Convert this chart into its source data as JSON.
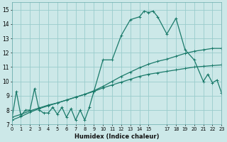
{
  "xlabel": "Humidex (Indice chaleur)",
  "bg_color": "#cce8e8",
  "grid_color": "#99cccc",
  "line_color": "#1a7a6a",
  "xlim": [
    0,
    23
  ],
  "ylim": [
    7,
    15.5
  ],
  "yticks": [
    7,
    8,
    9,
    10,
    11,
    12,
    13,
    14,
    15
  ],
  "xtick_positions": [
    0,
    1,
    2,
    3,
    4,
    5,
    6,
    7,
    8,
    9,
    10,
    11,
    12,
    13,
    14,
    15,
    17,
    18,
    19,
    20,
    21,
    22,
    23
  ],
  "xtick_labels": [
    "0",
    "1",
    "2",
    "3",
    "4",
    "5",
    "6",
    "7",
    "8",
    "9",
    "10",
    "11",
    "12",
    "13",
    "14",
    "15",
    "17",
    "18",
    "19",
    "20",
    "21",
    "22",
    "23"
  ],
  "line1_x": [
    0,
    0.5,
    1,
    1.5,
    2,
    2.5,
    3,
    3.5,
    4,
    4.5,
    5,
    5.5,
    6,
    6.5,
    7,
    7.5,
    8,
    8.5,
    9,
    10,
    11,
    12,
    13,
    14,
    14.5,
    15,
    15.5,
    16,
    17,
    18,
    19,
    20,
    21,
    21.5,
    22,
    22.5,
    23
  ],
  "line1_y": [
    7.3,
    9.3,
    7.6,
    8.0,
    8.0,
    9.5,
    8.0,
    7.8,
    7.8,
    8.2,
    7.7,
    8.2,
    7.5,
    8.1,
    7.3,
    8.0,
    7.3,
    8.2,
    9.3,
    11.5,
    11.5,
    13.2,
    14.3,
    14.5,
    14.9,
    14.8,
    14.9,
    14.5,
    13.3,
    14.4,
    12.2,
    11.5,
    10.0,
    10.5,
    9.9,
    10.1,
    9.2
  ],
  "line2_x": [
    0,
    1,
    2,
    3,
    4,
    5,
    6,
    7,
    8,
    9,
    10,
    11,
    12,
    13,
    14,
    15,
    16,
    17,
    18,
    19,
    20,
    21,
    22,
    23
  ],
  "line2_y": [
    7.5,
    7.7,
    7.95,
    8.15,
    8.35,
    8.5,
    8.7,
    8.9,
    9.1,
    9.35,
    9.65,
    10.0,
    10.35,
    10.65,
    10.95,
    11.2,
    11.4,
    11.55,
    11.75,
    11.95,
    12.1,
    12.2,
    12.3,
    12.3
  ],
  "line3_x": [
    0,
    1,
    2,
    3,
    4,
    5,
    6,
    7,
    8,
    9,
    10,
    11,
    12,
    13,
    14,
    15,
    16,
    17,
    18,
    19,
    20,
    21,
    22,
    23
  ],
  "line3_y": [
    7.3,
    7.55,
    7.85,
    8.1,
    8.3,
    8.5,
    8.7,
    8.9,
    9.1,
    9.3,
    9.55,
    9.75,
    9.95,
    10.15,
    10.35,
    10.5,
    10.6,
    10.7,
    10.8,
    10.9,
    11.0,
    11.05,
    11.1,
    11.15
  ]
}
